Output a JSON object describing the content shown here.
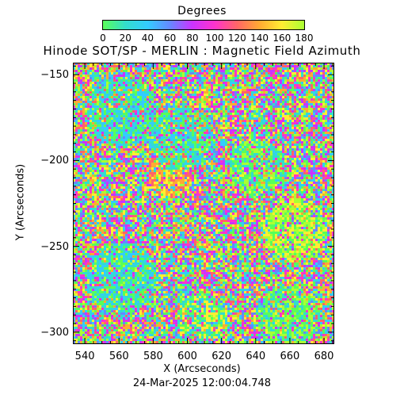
{
  "colorbar": {
    "title": "Degrees",
    "ticks": [
      "0",
      "20",
      "40",
      "60",
      "80",
      "100",
      "120",
      "140",
      "160",
      "180"
    ],
    "range": [
      0,
      180
    ],
    "colors": [
      "#59ff59",
      "#33ddcc",
      "#33ccff",
      "#6688ff",
      "#cc33ff",
      "#ff33cc",
      "#ff6666",
      "#ffaa33",
      "#ffee33",
      "#aaff33"
    ]
  },
  "plot": {
    "title": "Hinode SOT/SP - MERLIN : Magnetic Field Azimuth",
    "xlabel": "X (Arcseconds)",
    "ylabel": "Y (Arcseconds)",
    "xrange": [
      533,
      686
    ],
    "yrange": [
      -307,
      -143
    ],
    "xticks": [
      "540",
      "560",
      "580",
      "600",
      "620",
      "640",
      "660",
      "680"
    ],
    "yticks": [
      "-150",
      "-200",
      "-250",
      "-300"
    ],
    "timestamp": "24-Mar-2025 12:00:04.748"
  }
}
